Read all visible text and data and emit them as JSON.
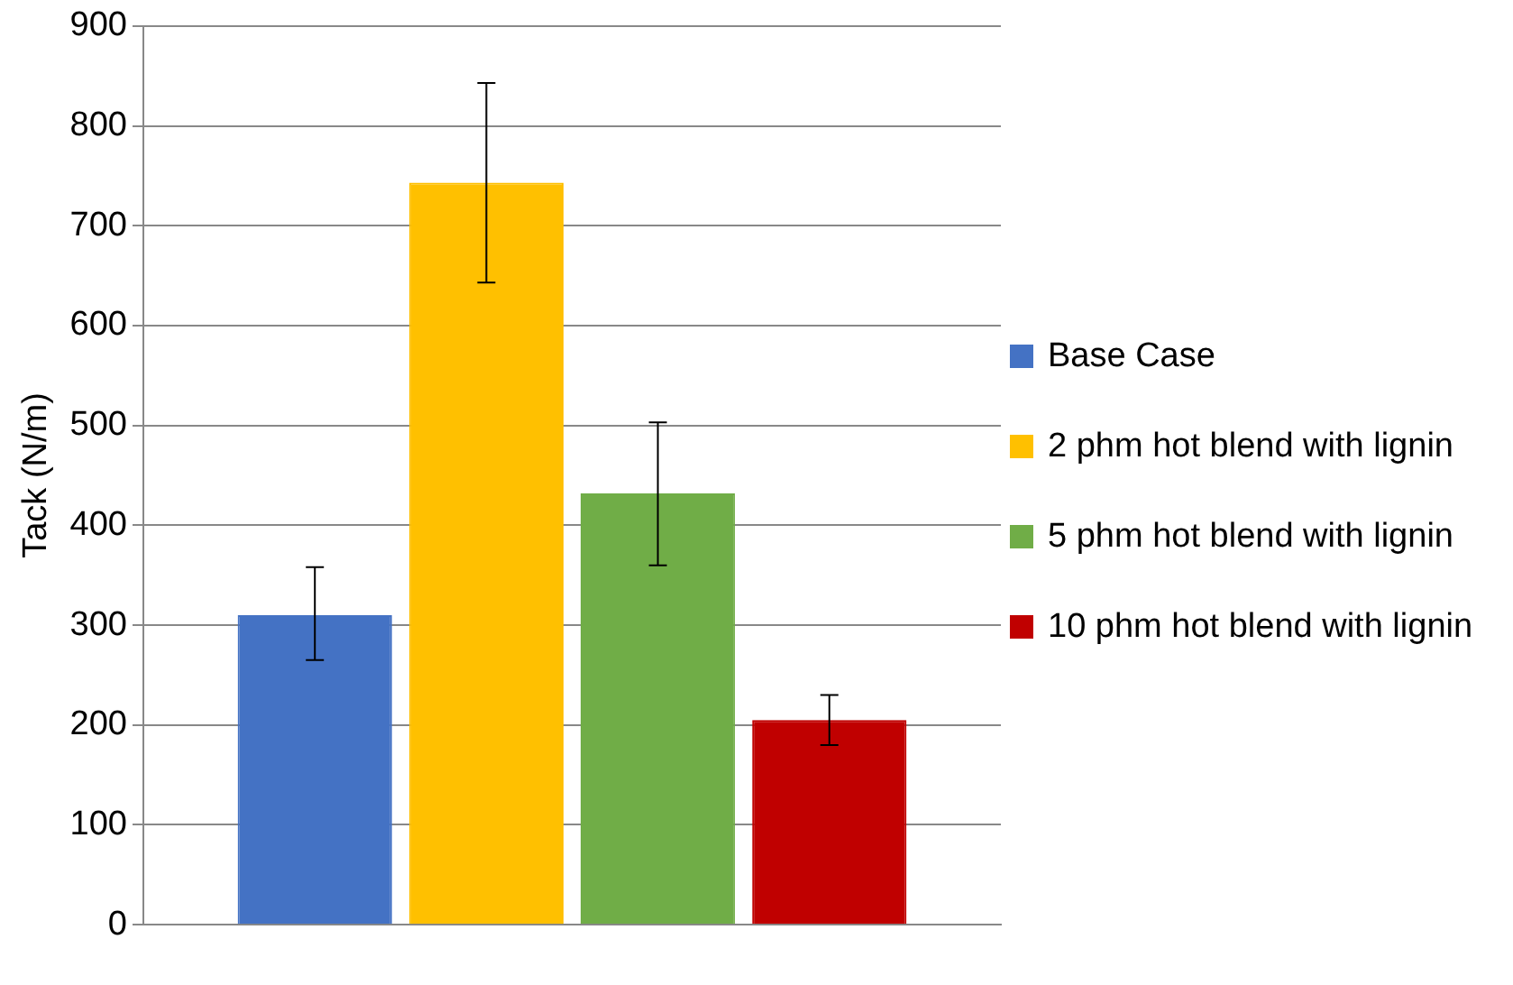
{
  "chart_data": {
    "type": "bar",
    "ylabel": "Tack (N/m)",
    "categories": [
      null
    ],
    "series": [
      {
        "name": "Base Case",
        "color": "#4472c4",
        "values": [
          310
        ],
        "errors": [
          [
            265,
            358
          ]
        ]
      },
      {
        "name": "2 phm hot blend with lignin",
        "color": "#ffc000",
        "values": [
          743
        ],
        "errors": [
          [
            643,
            843
          ]
        ]
      },
      {
        "name": "5 phm hot blend with lignin",
        "color": "#70ad47",
        "values": [
          432
        ],
        "errors": [
          [
            360,
            503
          ]
        ]
      },
      {
        "name": "10 phm hot blend with lignin",
        "color": "#c00000",
        "values": [
          205
        ],
        "errors": [
          [
            180,
            230
          ]
        ]
      }
    ],
    "ylim": [
      0,
      900
    ],
    "yticks": [
      0,
      100,
      200,
      300,
      400,
      500,
      600,
      700,
      800,
      900
    ],
    "grid": "y",
    "legend": "right"
  }
}
